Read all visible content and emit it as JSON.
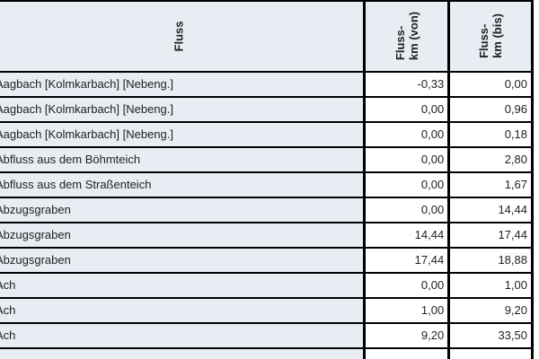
{
  "table": {
    "header": {
      "fluss": "Fluss",
      "von": "Fluss-\nkm (von)",
      "bis": "Fluss-\nkm (bis)"
    },
    "rows": [
      {
        "fluss": "Aagbach [Kolmkarbach] [Nebeng.]",
        "von": "-0,33",
        "bis": "0,00"
      },
      {
        "fluss": "Aagbach [Kolmkarbach] [Nebeng.]",
        "von": "0,00",
        "bis": "0,96"
      },
      {
        "fluss": "Aagbach [Kolmkarbach] [Nebeng.]",
        "von": "0,00",
        "bis": "0,18"
      },
      {
        "fluss": "Abfluss aus dem Böhmteich",
        "von": "0,00",
        "bis": "2,80"
      },
      {
        "fluss": "Abfluss aus dem Straßenteich",
        "von": "0,00",
        "bis": "1,67"
      },
      {
        "fluss": "Abzugsgraben",
        "von": "0,00",
        "bis": "14,44"
      },
      {
        "fluss": "Abzugsgraben",
        "von": "14,44",
        "bis": "17,44"
      },
      {
        "fluss": "Abzugsgraben",
        "von": "17,44",
        "bis": "18,88"
      },
      {
        "fluss": "Ach",
        "von": "0,00",
        "bis": "1,00"
      },
      {
        "fluss": "Ach",
        "von": "1,00",
        "bis": "9,20"
      },
      {
        "fluss": "Ach",
        "von": "9,20",
        "bis": "33,50"
      }
    ],
    "partial_row": {
      "fluss": "",
      "von": "",
      "bis": ""
    }
  },
  "colors": {
    "header_bg": "#e7edf3",
    "row_bg": "#e7edf3",
    "cell_bg": "#ffffff",
    "border": "#000000",
    "text": "#222222"
  }
}
